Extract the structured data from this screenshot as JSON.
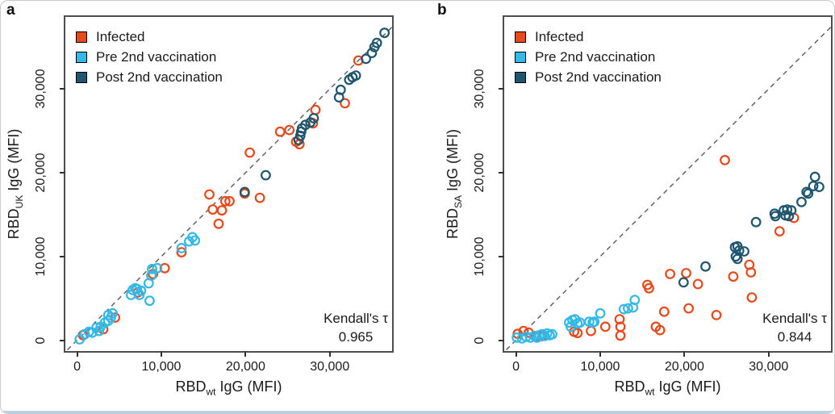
{
  "figure": {
    "bottom_edge_color": "#b9d3e6",
    "plot_frame_color": "#4e4e4e",
    "identity_line_color": "#5a5a5a"
  },
  "chart_data": [
    {
      "type": "scatter",
      "panel_label": "a",
      "title": "",
      "xlabel": "RBDwt IgG (MFI)",
      "ylabel": "RBDUK IgG (MFI)",
      "xlabel_parts": {
        "base": "RBD",
        "sub": "wt",
        "rest": " IgG (MFI)"
      },
      "ylabel_parts": {
        "base": "RBD",
        "sub": "UK",
        "rest": " IgG (MFI)"
      },
      "xlim": [
        -1400,
        37400
      ],
      "ylim": [
        -1300,
        38600
      ],
      "grid": false,
      "identity_line": true,
      "legend_position": "top-left",
      "annotation": {
        "line1": "Kendall's τ",
        "line2": "0.965"
      },
      "kendalls_tau": "0.965",
      "x_ticks": [
        {
          "value": 0,
          "label": "0"
        },
        {
          "value": 10000,
          "label": "10,000"
        },
        {
          "value": 20000,
          "label": "20,000"
        },
        {
          "value": 30000,
          "label": "30,000"
        }
      ],
      "y_ticks": [
        {
          "value": 0,
          "label": "0"
        },
        {
          "value": 10000,
          "label": "10,000"
        },
        {
          "value": 20000,
          "label": "20,000"
        },
        {
          "value": 30000,
          "label": "30,000"
        }
      ],
      "series": [
        {
          "name": "Infected",
          "color": "#e8491b",
          "marker": "open-circle",
          "points": [
            [
              700,
              600
            ],
            [
              3100,
              1300
            ],
            [
              4500,
              2700
            ],
            [
              7200,
              5700
            ],
            [
              9000,
              7900
            ],
            [
              10400,
              8600
            ],
            [
              12400,
              10500
            ],
            [
              15700,
              17400
            ],
            [
              16100,
              15600
            ],
            [
              16800,
              13900
            ],
            [
              17200,
              15500
            ],
            [
              17600,
              16600
            ],
            [
              18100,
              16600
            ],
            [
              19900,
              17500
            ],
            [
              21700,
              17000
            ],
            [
              20500,
              22400
            ],
            [
              24100,
              24900
            ],
            [
              25200,
              25100
            ],
            [
              26000,
              23700
            ],
            [
              26400,
              23400
            ],
            [
              28000,
              25900
            ],
            [
              28300,
              27500
            ],
            [
              31800,
              28300
            ],
            [
              33400,
              33400
            ]
          ]
        },
        {
          "name": "Pre 2nd vaccination",
          "color": "#33b9e8",
          "marker": "open-circle",
          "points": [
            [
              300,
              100
            ],
            [
              900,
              700
            ],
            [
              1400,
              1000
            ],
            [
              1800,
              900
            ],
            [
              2300,
              1500
            ],
            [
              2600,
              1100
            ],
            [
              2800,
              1600
            ],
            [
              3300,
              2100
            ],
            [
              3700,
              2300
            ],
            [
              3700,
              3000
            ],
            [
              4000,
              2700
            ],
            [
              4200,
              3200
            ],
            [
              6400,
              5400
            ],
            [
              6600,
              6000
            ],
            [
              6900,
              6200
            ],
            [
              7100,
              6100
            ],
            [
              7400,
              5400
            ],
            [
              7600,
              5900
            ],
            [
              8500,
              6800
            ],
            [
              8600,
              4700
            ],
            [
              8800,
              7700
            ],
            [
              8900,
              8500
            ],
            [
              9500,
              8600
            ],
            [
              12400,
              11000
            ],
            [
              13300,
              11800
            ],
            [
              13700,
              12300
            ],
            [
              14000,
              11900
            ]
          ]
        },
        {
          "name": "Post 2nd vaccination",
          "color": "#1d566e",
          "marker": "open-circle",
          "points": [
            [
              19900,
              17700
            ],
            [
              22400,
              19700
            ],
            [
              26300,
              23900
            ],
            [
              26500,
              24400
            ],
            [
              26600,
              24900
            ],
            [
              26700,
              25300
            ],
            [
              27100,
              25700
            ],
            [
              27700,
              26000
            ],
            [
              28100,
              26500
            ],
            [
              31100,
              29000
            ],
            [
              31300,
              29900
            ],
            [
              32300,
              31100
            ],
            [
              32700,
              31400
            ],
            [
              33100,
              31600
            ],
            [
              34300,
              33600
            ],
            [
              35000,
              34300
            ],
            [
              35300,
              35000
            ],
            [
              35600,
              35500
            ],
            [
              36500,
              36700
            ]
          ]
        }
      ]
    },
    {
      "type": "scatter",
      "panel_label": "b",
      "title": "",
      "xlabel": "RBDwt IgG (MFI)",
      "ylabel": "RBDSA IgG (MFI)",
      "xlabel_parts": {
        "base": "RBD",
        "sub": "wt",
        "rest": " IgG (MFI)"
      },
      "ylabel_parts": {
        "base": "RBD",
        "sub": "SA",
        "rest": " IgG (MFI)"
      },
      "xlim": [
        -1400,
        37400
      ],
      "ylim": [
        -1300,
        38600
      ],
      "grid": false,
      "identity_line": true,
      "legend_position": "top-left",
      "annotation": {
        "line1": "Kendall's τ",
        "line2": "0.844"
      },
      "kendalls_tau": "0.844",
      "x_ticks": [
        {
          "value": 0,
          "label": "0"
        },
        {
          "value": 10000,
          "label": "10,000"
        },
        {
          "value": 20000,
          "label": "20,000"
        },
        {
          "value": 30000,
          "label": "30,000"
        }
      ],
      "y_ticks": [
        {
          "value": 0,
          "label": "0"
        },
        {
          "value": 10000,
          "label": "10,000"
        },
        {
          "value": 20000,
          "label": "20,000"
        },
        {
          "value": 30000,
          "label": "30,000"
        }
      ],
      "series": [
        {
          "name": "Infected",
          "color": "#e8491b",
          "marker": "open-circle",
          "points": [
            [
              200,
              750
            ],
            [
              900,
              1100
            ],
            [
              1500,
              900
            ],
            [
              2300,
              400
            ],
            [
              3100,
              500
            ],
            [
              6900,
              1000
            ],
            [
              7300,
              850
            ],
            [
              8900,
              1100
            ],
            [
              10600,
              1600
            ],
            [
              12300,
              2500
            ],
            [
              12400,
              1600
            ],
            [
              12400,
              550
            ],
            [
              15600,
              6600
            ],
            [
              15800,
              6200
            ],
            [
              16600,
              1600
            ],
            [
              17100,
              1200
            ],
            [
              17600,
              3400
            ],
            [
              18300,
              7900
            ],
            [
              20200,
              8000
            ],
            [
              20500,
              3800
            ],
            [
              21600,
              6700
            ],
            [
              23800,
              3000
            ],
            [
              24800,
              21500
            ],
            [
              25800,
              7600
            ],
            [
              27700,
              9000
            ],
            [
              27900,
              8100
            ],
            [
              28000,
              5100
            ],
            [
              31300,
              13000
            ],
            [
              33000,
              14600
            ]
          ]
        },
        {
          "name": "Pre 2nd vaccination",
          "color": "#33b9e8",
          "marker": "open-circle",
          "points": [
            [
              100,
              300
            ],
            [
              700,
              200
            ],
            [
              1200,
              400
            ],
            [
              1700,
              300
            ],
            [
              2200,
              500
            ],
            [
              2500,
              300
            ],
            [
              2800,
              600
            ],
            [
              3100,
              700
            ],
            [
              3400,
              500
            ],
            [
              3700,
              800
            ],
            [
              4000,
              600
            ],
            [
              4300,
              700
            ],
            [
              6300,
              2100
            ],
            [
              6500,
              1600
            ],
            [
              6700,
              2400
            ],
            [
              7000,
              2500
            ],
            [
              7300,
              2000
            ],
            [
              7600,
              2100
            ],
            [
              8700,
              2200
            ],
            [
              9100,
              2100
            ],
            [
              9300,
              2200
            ],
            [
              10000,
              3200
            ],
            [
              12800,
              3700
            ],
            [
              13300,
              3800
            ],
            [
              13900,
              3900
            ],
            [
              14100,
              4800
            ]
          ]
        },
        {
          "name": "Post 2nd vaccination",
          "color": "#1d566e",
          "marker": "open-circle",
          "points": [
            [
              19900,
              6900
            ],
            [
              22500,
              8800
            ],
            [
              26000,
              11100
            ],
            [
              26300,
              11200
            ],
            [
              26500,
              10700
            ],
            [
              26100,
              10000
            ],
            [
              26300,
              9700
            ],
            [
              27100,
              10600
            ],
            [
              28500,
              14100
            ],
            [
              30700,
              15100
            ],
            [
              30800,
              14800
            ],
            [
              31800,
              15500
            ],
            [
              32000,
              14900
            ],
            [
              32200,
              15600
            ],
            [
              32400,
              14800
            ],
            [
              32700,
              15500
            ],
            [
              33900,
              16500
            ],
            [
              34500,
              17700
            ],
            [
              34700,
              17500
            ],
            [
              35300,
              18400
            ],
            [
              36000,
              18300
            ],
            [
              35500,
              19500
            ]
          ]
        }
      ]
    }
  ]
}
